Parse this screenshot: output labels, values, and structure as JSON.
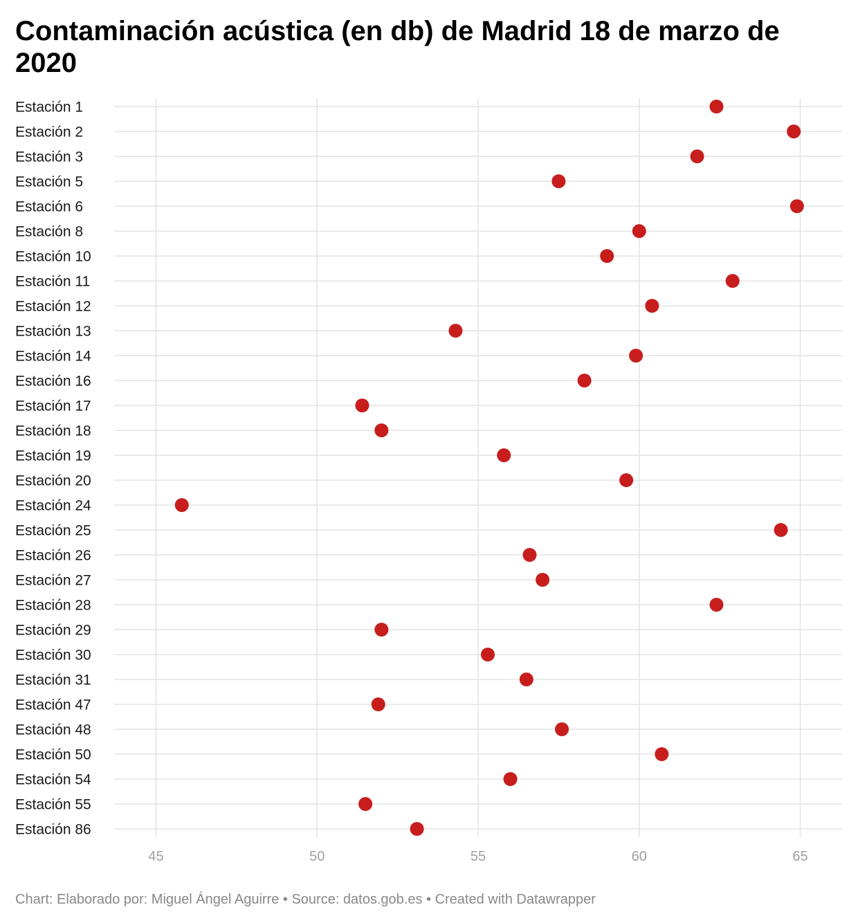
{
  "chart_data": {
    "type": "scatter",
    "title": "Contaminación acústica (en db) de Madrid 18 de marzo de 2020",
    "categories": [
      "Estación 1",
      "Estación 2",
      "Estación 3",
      "Estación 5",
      "Estación 6",
      "Estación 8",
      "Estación 10",
      "Estación 11",
      "Estación 12",
      "Estación 13",
      "Estación 14",
      "Estación 16",
      "Estación 17",
      "Estación 18",
      "Estación 19",
      "Estación 20",
      "Estación 24",
      "Estación 25",
      "Estación 26",
      "Estación 27",
      "Estación 28",
      "Estación 29",
      "Estación 30",
      "Estación 31",
      "Estación 47",
      "Estación 48",
      "Estación 50",
      "Estación 54",
      "Estación 55",
      "Estación 86"
    ],
    "values": [
      62.4,
      64.8,
      61.8,
      57.5,
      64.9,
      60.0,
      59.0,
      62.9,
      60.4,
      54.3,
      59.9,
      58.3,
      51.4,
      52.0,
      55.8,
      59.6,
      45.8,
      64.4,
      56.6,
      57.0,
      62.4,
      52.0,
      55.3,
      56.5,
      51.9,
      57.6,
      60.7,
      56.0,
      51.5,
      53.1
    ],
    "xlim": [
      43.7,
      66.3
    ],
    "xticks": [
      "45",
      "50",
      "55",
      "60",
      "65"
    ],
    "grid": true,
    "color": "#c71e1d"
  },
  "footer": "Chart: Elaborado por: Miguel Ángel Aguirre • Source: datos.gob.es • Created with Datawrapper"
}
